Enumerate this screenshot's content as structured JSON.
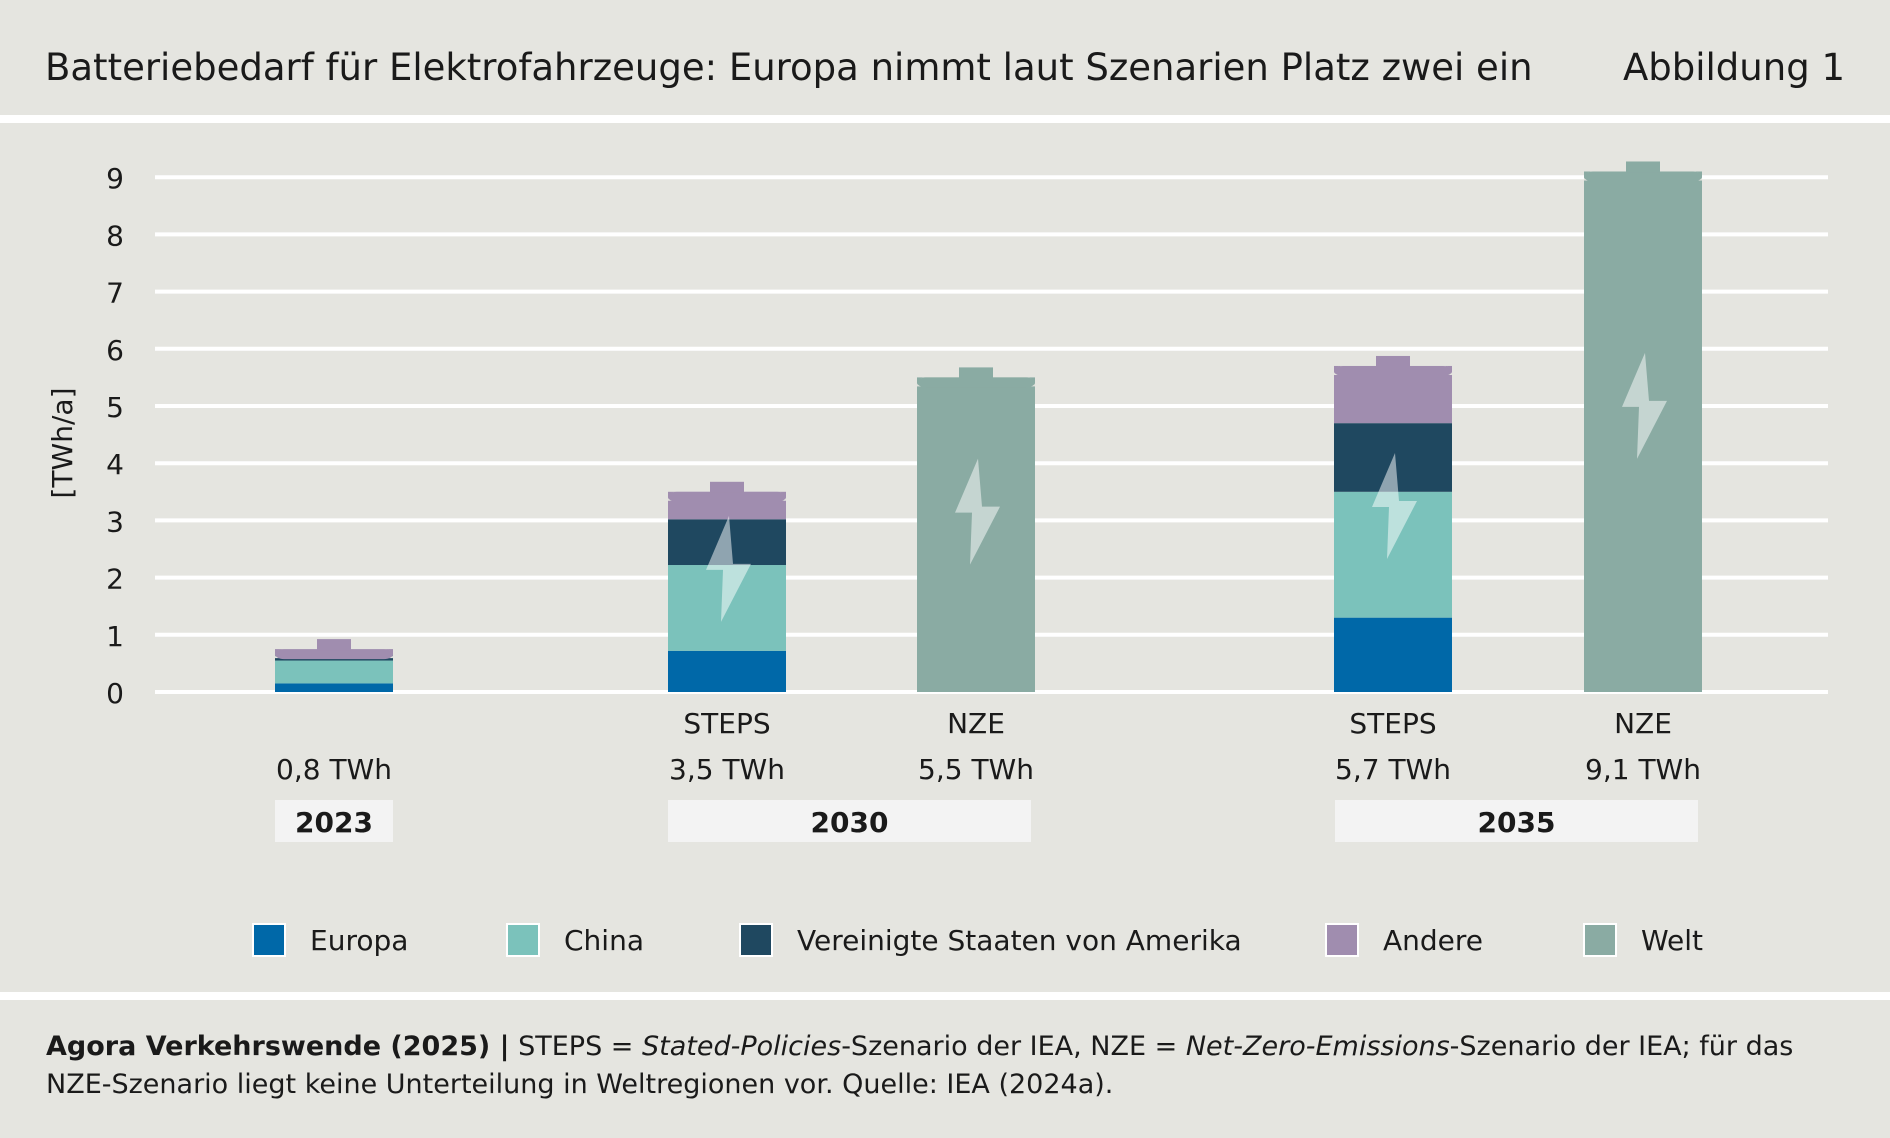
{
  "header": {
    "title": "Batteriebedarf für Elektrofahrzeuge: Europa nimmt laut Szenarien Platz zwei ein",
    "figure_label": "Abbildung 1"
  },
  "chart_data": {
    "type": "bar",
    "stacked": true,
    "title": "Batteriebedarf für Elektrofahrzeuge: Europa nimmt laut Szenarien Platz zwei ein",
    "ylabel": "[TWh/a]",
    "xlabel": "",
    "ylim": [
      0,
      9
    ],
    "yticks": [
      0,
      1,
      2,
      3,
      4,
      5,
      6,
      7,
      8,
      9
    ],
    "grid": true,
    "legend_position": "bottom",
    "series": [
      {
        "name": "Europa",
        "color": "#0068a8",
        "values": [
          0.15,
          0.72,
          null,
          1.3,
          null
        ]
      },
      {
        "name": "China",
        "color": "#7bc2bb",
        "values": [
          0.4,
          1.5,
          null,
          2.2,
          null
        ]
      },
      {
        "name": "Vereinigte Staaten von Amerika",
        "color": "#1f4860",
        "values": [
          0.1,
          0.8,
          null,
          1.2,
          null
        ]
      },
      {
        "name": "Andere",
        "color": "#a08daf",
        "values": [
          0.1,
          0.48,
          null,
          1.0,
          null
        ]
      },
      {
        "name": "Welt",
        "color": "#8aaba3",
        "values": [
          null,
          null,
          5.5,
          null,
          9.1
        ]
      }
    ],
    "bars": [
      {
        "scenario": "",
        "total_label": "0,8 TWh",
        "year": "2023"
      },
      {
        "scenario": "STEPS",
        "total_label": "3,5 TWh",
        "year": "2030"
      },
      {
        "scenario": "NZE",
        "total_label": "5,5 TWh",
        "year": "2030"
      },
      {
        "scenario": "STEPS",
        "total_label": "5,7 TWh",
        "year": "2035"
      },
      {
        "scenario": "NZE",
        "total_label": "9,1 TWh",
        "year": "2035"
      }
    ],
    "year_groups": [
      "2023",
      "2030",
      "2035"
    ]
  },
  "legend": {
    "items": [
      {
        "label": "Europa",
        "color": "#0068a8"
      },
      {
        "label": "China",
        "color": "#7bc2bb"
      },
      {
        "label": "Vereinigte Staaten von Amerika",
        "color": "#1f4860"
      },
      {
        "label": "Andere",
        "color": "#a08daf"
      },
      {
        "label": "Welt",
        "color": "#8aaba3"
      }
    ]
  },
  "footer": {
    "source_bold": "Agora Verkehrswende (2025) |",
    "part1": " STEPS = ",
    "italic1": "Stated-Policies",
    "part2": "-Szenario der IEA, NZE = ",
    "italic2": "Net-Zero-Emissions",
    "part3": "-Szenario der IEA; für das NZE-Szenario liegt keine Unterteilung in Weltregionen vor. Quelle: IEA (2024a)."
  },
  "colors": {
    "background": "#e5e5e0",
    "year_box": "#f3f3f3",
    "divider": "#ffffff"
  }
}
